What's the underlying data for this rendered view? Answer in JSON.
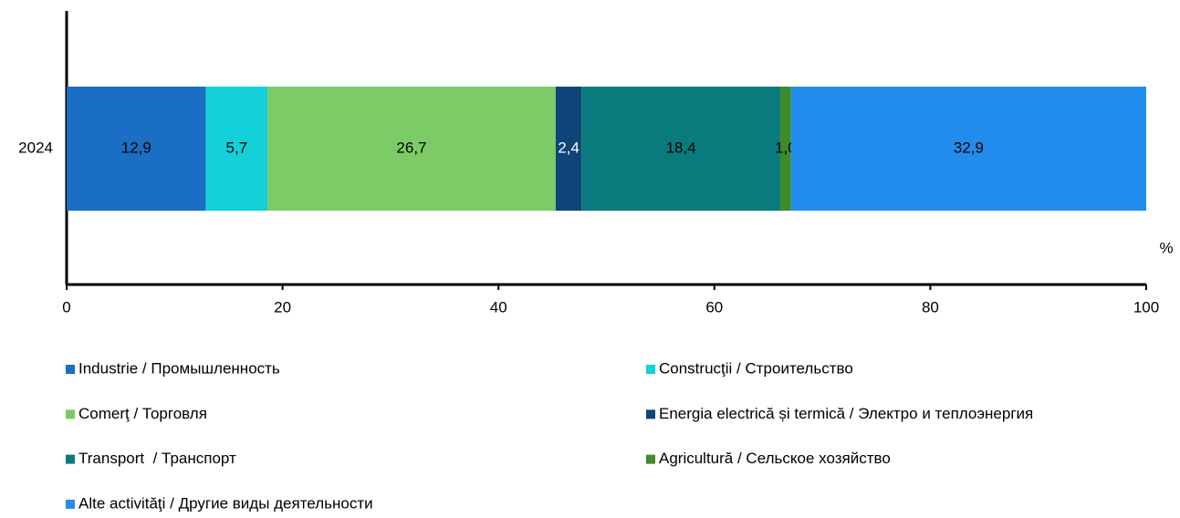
{
  "chart_data": {
    "type": "stacked_barh",
    "categories": [
      "2024"
    ],
    "series": [
      {
        "name": "Industrie / Промышленность",
        "color": "#1a6fc4",
        "label_color": "#000000",
        "values": [
          12.9
        ],
        "value_labels": [
          "12,9"
        ]
      },
      {
        "name": "Construcţii / Строительство",
        "color": "#14d0d8",
        "label_color": "#000000",
        "values": [
          5.7
        ],
        "value_labels": [
          "5,7"
        ]
      },
      {
        "name": "Comerţ / Торговля",
        "color": "#7dcb66",
        "label_color": "#000000",
        "values": [
          26.7
        ],
        "value_labels": [
          "26,7"
        ]
      },
      {
        "name": "Energia electrică și termică / Электро и теплоэнергия",
        "color": "#0e4478",
        "label_color": "#ffffff",
        "values": [
          2.4
        ],
        "value_labels": [
          "2,4"
        ]
      },
      {
        "name": "Transport  / Транспорт",
        "color": "#0a7b7d",
        "label_color": "#000000",
        "values": [
          18.4
        ],
        "value_labels": [
          "18,4"
        ]
      },
      {
        "name": "Agricultură / Сельское хозяйство",
        "color": "#3f8a2a",
        "label_color": "#000000",
        "values": [
          1.0
        ],
        "value_labels": [
          "1,0"
        ]
      },
      {
        "name": "Alte activităţi / Другие виды деятельности",
        "color": "#228ded",
        "label_color": "#000000",
        "values": [
          32.9
        ],
        "value_labels": [
          "32,9"
        ]
      }
    ],
    "xlabel": "%",
    "xlim": [
      0,
      100
    ],
    "xticks": [
      0,
      20,
      40,
      60,
      80,
      100
    ],
    "legend": "bottom"
  }
}
